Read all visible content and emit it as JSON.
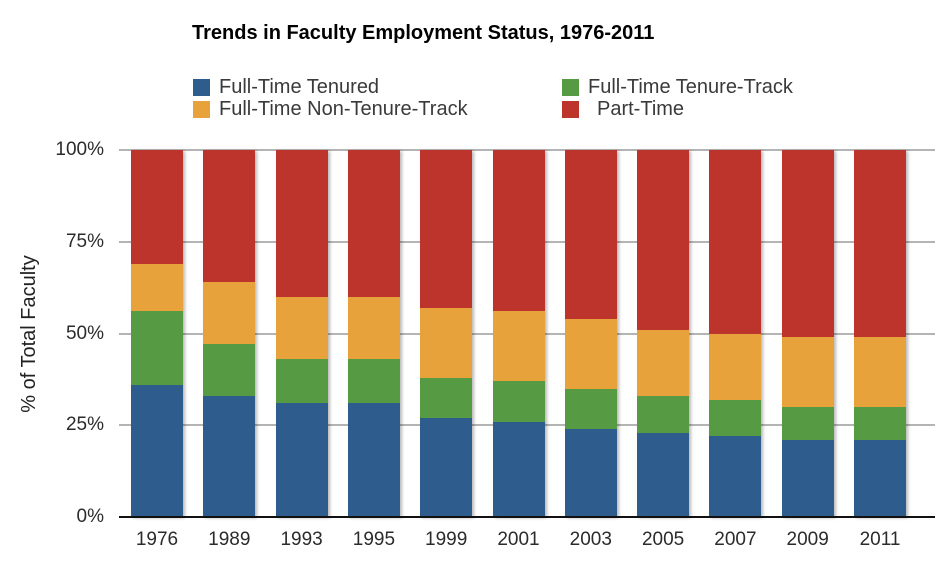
{
  "title": "Trends in Faculty Employment Status, 1976-2011",
  "legend": {
    "items": [
      {
        "label": "Full-Time Tenured",
        "color": "#2e5c8c"
      },
      {
        "label": "Full-Time Tenure-Track",
        "color": "#569a44"
      },
      {
        "label": "Full-Time Non-Tenure-Track",
        "color": "#e8a23c"
      },
      {
        "label": "Part-Time",
        "color": "#bd342d"
      }
    ]
  },
  "chart_data": {
    "type": "bar",
    "stacked": true,
    "title": "Trends in Faculty Employment Status, 1976-2011",
    "xlabel": "",
    "ylabel": "% of Total Faculty",
    "ylim": [
      0,
      100
    ],
    "yticks": [
      "0%",
      "25%",
      "50%",
      "75%",
      "100%"
    ],
    "grid": true,
    "legend_position": "top",
    "categories": [
      "1976",
      "1989",
      "1993",
      "1995",
      "1999",
      "2001",
      "2003",
      "2005",
      "2007",
      "2009",
      "2011"
    ],
    "series": [
      {
        "name": "Full-Time Tenured",
        "color": "#2e5c8c",
        "values": [
          36,
          33,
          31,
          31,
          27,
          26,
          24,
          23,
          22,
          21,
          21
        ]
      },
      {
        "name": "Full-Time Tenure-Track",
        "color": "#569a44",
        "values": [
          20,
          14,
          12,
          12,
          11,
          11,
          11,
          10,
          10,
          9,
          9
        ]
      },
      {
        "name": "Full-Time Non-Tenure-Track",
        "color": "#e8a23c",
        "values": [
          13,
          17,
          17,
          17,
          19,
          19,
          19,
          18,
          18,
          19,
          19
        ]
      },
      {
        "name": "Part-Time",
        "color": "#bd342d",
        "values": [
          31,
          36,
          40,
          40,
          43,
          44,
          46,
          49,
          50,
          51,
          51
        ]
      }
    ]
  }
}
